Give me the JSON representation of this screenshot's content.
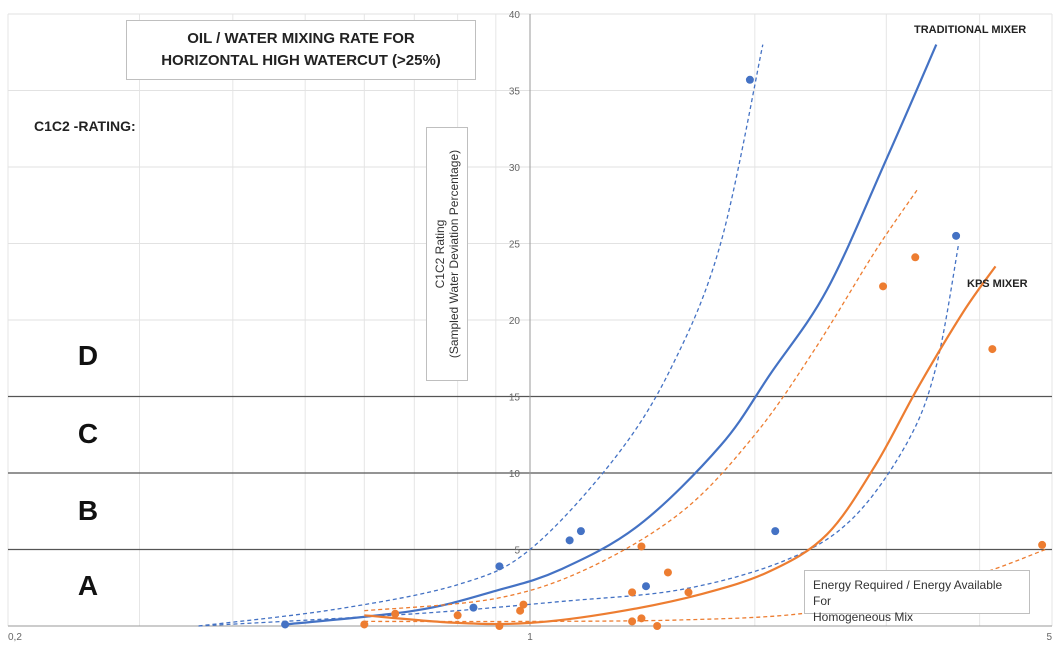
{
  "chart_data": {
    "type": "scatter",
    "title": [
      "OIL / WATER MIXING RATE FOR",
      "HORIZONTAL HIGH WATERCUT (>25%)"
    ],
    "rating_label": "C1C2 -RATING:",
    "ylabel": [
      "C1C2 Rating",
      "(Sampled Water Deviation Percentage)"
    ],
    "xlabel": [
      "Energy Required / Energy Available For",
      "Homogeneous Mix"
    ],
    "x_scale": "log",
    "xlim": [
      0.2,
      5
    ],
    "ylim": [
      0,
      40
    ],
    "x_tick_labels": [
      {
        "value": 0.2,
        "label": "0,2"
      },
      {
        "value": 1,
        "label": "1"
      },
      {
        "value": 5,
        "label": "5"
      }
    ],
    "y_ticks": [
      5,
      10,
      15,
      20,
      25,
      30,
      35,
      40
    ],
    "grid": true,
    "zones": [
      {
        "label": "A",
        "from": 0,
        "to": 5
      },
      {
        "label": "B",
        "from": 5,
        "to": 10
      },
      {
        "label": "C",
        "from": 10,
        "to": 15
      },
      {
        "label": "D",
        "from": 15,
        "to": 22
      }
    ],
    "series": [
      {
        "name": "TRADITIONAL MIXER",
        "color": "#4472c4",
        "points": [
          [
            0.47,
            0.1
          ],
          [
            0.84,
            1.2
          ],
          [
            0.91,
            3.9
          ],
          [
            1.13,
            5.6
          ],
          [
            1.17,
            6.2
          ],
          [
            1.43,
            2.6
          ],
          [
            1.97,
            35.7
          ],
          [
            2.13,
            6.2
          ],
          [
            3.72,
            25.5
          ]
        ],
        "trend": [
          [
            0.47,
            0.1
          ],
          [
            0.7,
            1.0
          ],
          [
            0.9,
            2.3
          ],
          [
            1.1,
            3.7
          ],
          [
            1.4,
            6.6
          ],
          [
            1.8,
            11.8
          ],
          [
            2.1,
            16.5
          ],
          [
            2.5,
            22.0
          ],
          [
            3.0,
            30.5
          ],
          [
            3.5,
            38.0
          ]
        ],
        "upper": [
          [
            0.36,
            0.0
          ],
          [
            0.55,
            1.1
          ],
          [
            0.8,
            2.7
          ],
          [
            1.0,
            5.0
          ],
          [
            1.3,
            11.0
          ],
          [
            1.55,
            17.0
          ],
          [
            1.8,
            25.0
          ],
          [
            2.05,
            38.0
          ]
        ],
        "lower": [
          [
            0.36,
            0.0
          ],
          [
            0.7,
            0.8
          ],
          [
            1.1,
            1.6
          ],
          [
            1.6,
            2.4
          ],
          [
            2.2,
            4.3
          ],
          [
            2.7,
            7.0
          ],
          [
            3.2,
            12.0
          ],
          [
            3.5,
            17.0
          ],
          [
            3.75,
            25.0
          ]
        ]
      },
      {
        "name": "KPS MIXER",
        "color": "#ed7d31",
        "points": [
          [
            0.6,
            0.1
          ],
          [
            0.66,
            0.8
          ],
          [
            0.8,
            0.7
          ],
          [
            0.91,
            0.0
          ],
          [
            0.97,
            1.0
          ],
          [
            0.98,
            1.4
          ],
          [
            1.37,
            2.2
          ],
          [
            1.37,
            0.3
          ],
          [
            1.41,
            0.5
          ],
          [
            1.41,
            5.2
          ],
          [
            1.48,
            0.0
          ],
          [
            1.53,
            3.5
          ],
          [
            1.63,
            2.2
          ],
          [
            2.55,
            2.1
          ],
          [
            2.58,
            2.6
          ],
          [
            2.97,
            22.2
          ],
          [
            3.28,
            24.1
          ],
          [
            4.16,
            18.1
          ],
          [
            4.85,
            5.3
          ]
        ],
        "trend": [
          [
            0.6,
            0.7
          ],
          [
            0.8,
            0.2
          ],
          [
            1.0,
            0.2
          ],
          [
            1.3,
            0.9
          ],
          [
            1.7,
            2.1
          ],
          [
            2.1,
            3.6
          ],
          [
            2.5,
            6.0
          ],
          [
            2.9,
            10.5
          ],
          [
            3.3,
            15.5
          ],
          [
            3.8,
            20.5
          ],
          [
            4.2,
            23.5
          ]
        ],
        "upper": [
          [
            0.6,
            1.0
          ],
          [
            0.9,
            1.8
          ],
          [
            1.2,
            3.8
          ],
          [
            1.6,
            7.5
          ],
          [
            2.0,
            12.5
          ],
          [
            2.4,
            18.0
          ],
          [
            2.9,
            24.5
          ],
          [
            3.3,
            28.5
          ]
        ],
        "lower": [
          [
            0.6,
            0.3
          ],
          [
            1.0,
            0.3
          ],
          [
            1.6,
            0.4
          ],
          [
            2.3,
            0.8
          ],
          [
            3.1,
            2.0
          ],
          [
            4.0,
            3.4
          ],
          [
            4.9,
            5.0
          ]
        ]
      }
    ]
  }
}
